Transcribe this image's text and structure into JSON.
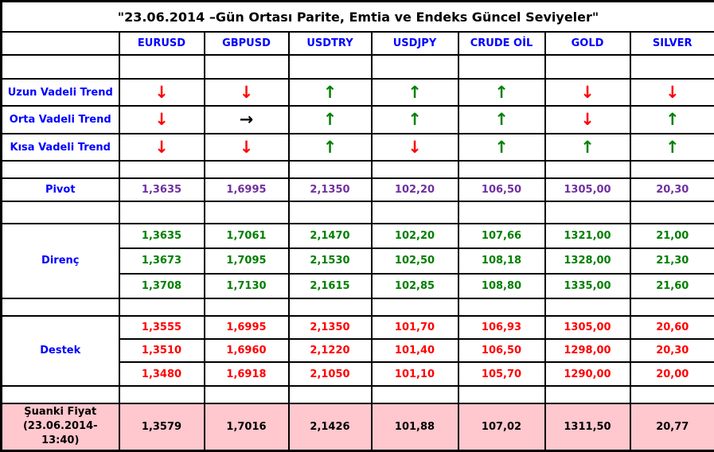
{
  "title": "\"23.06.2014 –Gün Ortası Parite, Emtia ve Endeks Güncel Seviyeler\"",
  "columns": [
    "EURUSD",
    "GBPUSD",
    "USDTRY",
    "USDJPY",
    "CRUDE OİL",
    "GOLD",
    "SILVER"
  ],
  "arrow_glyphs": {
    "up": "↑",
    "down": "↓",
    "flat": "→"
  },
  "colors": {
    "title_text": "#000000",
    "header_text": "#0000FF",
    "label_text": "#0000FF",
    "pivot_text": "#7030A0",
    "resistance_text": "#008000",
    "support_text": "#FF0000",
    "up_arrow": "#008000",
    "down_arrow": "#FF0000",
    "flat_arrow": "#000000",
    "current_row_bg": "#FFC7CE",
    "border": "#000000"
  },
  "trend_rows": [
    {
      "label": "Uzun Vadeli Trend",
      "arrows": [
        "down",
        "down",
        "up",
        "up",
        "up",
        "down",
        "down"
      ]
    },
    {
      "label": "Orta Vadeli Trend",
      "arrows": [
        "down",
        "flat",
        "up",
        "up",
        "up",
        "down",
        "up"
      ]
    },
    {
      "label": "Kısa Vadeli Trend",
      "arrows": [
        "down",
        "down",
        "up",
        "down",
        "up",
        "up",
        "up"
      ]
    }
  ],
  "pivot": {
    "label": "Pivot",
    "values": [
      "1,3635",
      "1,6995",
      "2,1350",
      "102,20",
      "106,50",
      "1305,00",
      "20,30"
    ]
  },
  "resistance": {
    "label": "Direnç",
    "rows": [
      [
        "1,3635",
        "1,7061",
        "2,1470",
        "102,20",
        "107,66",
        "1321,00",
        "21,00"
      ],
      [
        "1,3673",
        "1,7095",
        "2,1530",
        "102,50",
        "108,18",
        "1328,00",
        "21,30"
      ],
      [
        "1,3708",
        "1,7130",
        "2,1615",
        "102,85",
        "108,80",
        "1335,00",
        "21,60"
      ]
    ]
  },
  "support": {
    "label": "Destek",
    "rows": [
      [
        "1,3555",
        "1,6995",
        "2,1350",
        "101,70",
        "106,93",
        "1305,00",
        "20,60"
      ],
      [
        "1,3510",
        "1,6960",
        "2,1220",
        "101,40",
        "106,50",
        "1298,00",
        "20,30"
      ],
      [
        "1,3480",
        "1,6918",
        "2,1050",
        "101,10",
        "105,70",
        "1290,00",
        "20,00"
      ]
    ]
  },
  "current": {
    "label_lines": [
      "Şuanki Fiyat",
      "(23.06.2014-",
      "13:40)"
    ],
    "values": [
      "1,3579",
      "1,7016",
      "2,1426",
      "101,88",
      "107,02",
      "1311,50",
      "20,77"
    ]
  }
}
